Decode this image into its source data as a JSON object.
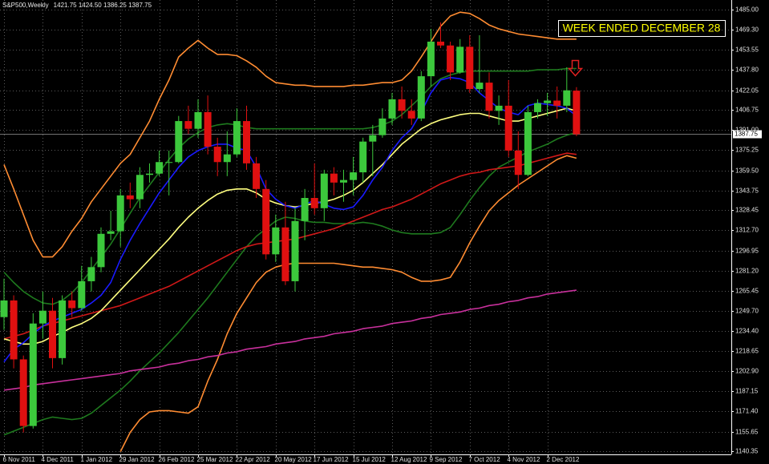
{
  "chart_data": {
    "type": "candlestick",
    "title": "S&P500,Weekly",
    "quote": "1421.75 1424.50 1386.25 1387.75",
    "annotation": "WEEK ENDED DECEMBER 28",
    "categories": [
      "6 Nov 2011",
      null,
      null,
      null,
      "4 Dec 2011",
      null,
      null,
      null,
      "1 Jan 2012",
      null,
      null,
      null,
      "29 Jan 2012",
      null,
      null,
      null,
      "26 Feb 2012",
      null,
      null,
      null,
      "25 Mar 2012",
      null,
      null,
      null,
      "22 Apr 2012",
      null,
      null,
      null,
      "20 May 2012",
      null,
      null,
      null,
      "17 Jun 2012",
      null,
      null,
      null,
      "15 Jul 2012",
      null,
      null,
      null,
      "12 Aug 2012",
      null,
      null,
      null,
      "9 Sep 2012",
      null,
      null,
      null,
      "7 Oct 2012",
      null,
      null,
      null,
      "4 Nov 2012",
      null,
      null,
      null,
      "2 Dec 2012",
      null,
      null,
      null
    ],
    "open": [
      1245,
      1258,
      1212,
      1160,
      1240,
      1250,
      1213,
      1258,
      1252,
      1273,
      1284,
      1310,
      1312,
      1340,
      1337,
      1356,
      1357,
      1366,
      1366,
      1398,
      1392,
      1405,
      1378,
      1366,
      1372,
      1398,
      1365,
      1345,
      1294,
      1315,
      1273,
      1320,
      1338,
      1330,
      1357,
      1350,
      1352,
      1358,
      1382,
      1387,
      1400,
      1415,
      1406,
      1400,
      1433,
      1460,
      1457,
      1436,
      1456,
      1423,
      1428,
      1406,
      1410,
      1375,
      1356,
      1405,
      1412,
      1414,
      1410,
      1421.75
    ],
    "high": [
      1275,
      1262,
      1215,
      1248,
      1265,
      1260,
      1262,
      1265,
      1285,
      1292,
      1315,
      1328,
      1345,
      1350,
      1362,
      1365,
      1375,
      1375,
      1402,
      1410,
      1415,
      1418,
      1385,
      1390,
      1408,
      1410,
      1370,
      1352,
      1325,
      1335,
      1330,
      1345,
      1365,
      1360,
      1362,
      1360,
      1370,
      1385,
      1395,
      1408,
      1420,
      1425,
      1415,
      1437,
      1470,
      1475,
      1460,
      1462,
      1465,
      1465,
      1436,
      1418,
      1430,
      1390,
      1410,
      1415,
      1420,
      1425,
      1440,
      1424.5
    ],
    "low": [
      1235,
      1205,
      1155,
      1158,
      1228,
      1205,
      1208,
      1245,
      1250,
      1265,
      1280,
      1305,
      1300,
      1330,
      1330,
      1350,
      1355,
      1340,
      1365,
      1388,
      1385,
      1372,
      1355,
      1355,
      1370,
      1360,
      1338,
      1290,
      1288,
      1270,
      1265,
      1305,
      1325,
      1320,
      1340,
      1335,
      1340,
      1350,
      1355,
      1385,
      1395,
      1400,
      1395,
      1398,
      1425,
      1455,
      1430,
      1435,
      1420,
      1420,
      1400,
      1395,
      1370,
      1345,
      1355,
      1400,
      1402,
      1400,
      1405,
      1386.25
    ],
    "close": [
      1258,
      1212,
      1160,
      1240,
      1250,
      1213,
      1258,
      1252,
      1273,
      1284,
      1310,
      1312,
      1340,
      1337,
      1356,
      1357,
      1366,
      1366,
      1398,
      1392,
      1405,
      1378,
      1366,
      1372,
      1398,
      1365,
      1345,
      1294,
      1315,
      1273,
      1320,
      1338,
      1330,
      1357,
      1350,
      1352,
      1358,
      1382,
      1387,
      1400,
      1415,
      1406,
      1400,
      1433,
      1460,
      1457,
      1436,
      1456,
      1423,
      1428,
      1406,
      1410,
      1375,
      1356,
      1405,
      1412,
      1414,
      1410,
      1422,
      1387.75
    ],
    "up_color": "#3cc83c",
    "down_color": "#e01010",
    "series": [
      {
        "color": "#ff8c32",
        "values": [
          1364,
          1345,
          1325,
          1305,
          1292,
          1292,
          1300,
          1312,
          1322,
          1335,
          1345,
          1355,
          1365,
          1372,
          1385,
          1398,
          1415,
          1430,
          1448,
          1455,
          1461,
          1455,
          1450,
          1450,
          1449,
          1445,
          1440,
          1433,
          1428,
          1427,
          1426,
          1426,
          1425,
          1425,
          1425,
          1425,
          1426,
          1426,
          1427,
          1428,
          1428,
          1430,
          1437,
          1448,
          1460,
          1472,
          1480,
          1483,
          1482,
          1478,
          1473,
          1470,
          1468,
          1466,
          1465,
          1464,
          1463,
          1462,
          1462,
          1462
        ]
      },
      {
        "color": "#ff8c32",
        "values": [
          null,
          null,
          null,
          null,
          null,
          null,
          null,
          null,
          null,
          null,
          null,
          null,
          1140,
          1155,
          1165,
          1171,
          1172,
          1172,
          1171,
          1170,
          1175,
          1195,
          1212,
          1232,
          1248,
          1260,
          1272,
          1280,
          1284,
          1286,
          1287,
          1287,
          1287,
          1287,
          1287,
          1286,
          1285,
          1284,
          1284,
          1283,
          1282,
          1280,
          1276,
          1273,
          1273,
          1274,
          1276,
          1288,
          1303,
          1316,
          1328,
          1336,
          1342,
          1348,
          1353,
          1358,
          1363,
          1368,
          1371,
          1369
        ]
      },
      {
        "color": "#1e7a1e",
        "values": [
          1280,
          1272,
          1265,
          1260,
          1256,
          1255,
          1258,
          1264,
          1272,
          1282,
          1292,
          1302,
          1314,
          1326,
          1338,
          1348,
          1358,
          1368,
          1377,
          1384,
          1389,
          1393,
          1395,
          1396,
          1395,
          1393,
          1392,
          1392,
          1392,
          1392,
          1392,
          1392,
          1392,
          1392,
          1392,
          1392,
          1392,
          1392,
          1393,
          1395,
          1398,
          1403,
          1410,
          1417,
          1425,
          1431,
          1434,
          1436,
          1437,
          1437,
          1437,
          1437,
          1437,
          1437,
          1437,
          1438,
          1438,
          1438,
          1439,
          1439
        ]
      },
      {
        "color": "#1e7a1e",
        "values": [
          1153,
          1156,
          1159,
          1162,
          1165,
          1167,
          1166,
          1165,
          1166,
          1170,
          1176,
          1182,
          1188,
          1195,
          1203,
          1210,
          1217,
          1225,
          1233,
          1242,
          1251,
          1260,
          1270,
          1280,
          1290,
          1300,
          1308,
          1314,
          1320,
          1323,
          1322,
          1320,
          1319,
          1319,
          1318,
          1318,
          1318,
          1319,
          1318,
          1316,
          1313,
          1311,
          1310,
          1310,
          1310,
          1311,
          1315,
          1325,
          1336,
          1346,
          1355,
          1362,
          1366,
          1370,
          1374,
          1377,
          1380,
          1384,
          1387,
          1389
        ]
      },
      {
        "color": "#c8309c",
        "values": [
          1188,
          1189,
          1190,
          1192,
          1193,
          1194,
          1195,
          1196,
          1197,
          1198,
          1199,
          1200,
          1201,
          1203,
          1204,
          1205,
          1206,
          1208,
          1209,
          1211,
          1212,
          1214,
          1215,
          1217,
          1218,
          1220,
          1221,
          1222,
          1224,
          1225,
          1226,
          1228,
          1229,
          1230,
          1232,
          1233,
          1234,
          1236,
          1237,
          1238,
          1240,
          1241,
          1242,
          1244,
          1245,
          1247,
          1248,
          1249,
          1251,
          1252,
          1254,
          1255,
          1257,
          1258,
          1260,
          1261,
          1263,
          1264,
          1265,
          1266
        ]
      },
      {
        "color": "#d01818",
        "values": [
          1228,
          1230,
          1232,
          1235,
          1238,
          1240,
          1242,
          1244,
          1246,
          1248,
          1250,
          1252,
          1254,
          1257,
          1260,
          1263,
          1266,
          1269,
          1273,
          1277,
          1281,
          1285,
          1289,
          1293,
          1297,
          1300,
          1302,
          1303,
          1304,
          1305,
          1306,
          1308,
          1310,
          1312,
          1314,
          1317,
          1320,
          1323,
          1326,
          1329,
          1331,
          1334,
          1337,
          1341,
          1345,
          1349,
          1352,
          1355,
          1357,
          1358,
          1360,
          1361,
          1362,
          1363,
          1365,
          1367,
          1369,
          1371,
          1373,
          1372
        ]
      },
      {
        "color": "#ffff80",
        "values": [
          1228,
          1226,
          1224,
          1224,
          1226,
          1230,
          1233,
          1237,
          1240,
          1244,
          1250,
          1258,
          1266,
          1274,
          1282,
          1290,
          1298,
          1306,
          1315,
          1323,
          1330,
          1336,
          1341,
          1344,
          1345,
          1345,
          1342,
          1337,
          1334,
          1332,
          1331,
          1332,
          1334,
          1335,
          1337,
          1340,
          1344,
          1350,
          1357,
          1364,
          1372,
          1380,
          1386,
          1392,
          1396,
          1399,
          1401,
          1403,
          1404,
          1404,
          1402,
          1400,
          1398,
          1398,
          1400,
          1402,
          1404,
          1406,
          1408,
          1406
        ]
      },
      {
        "color": "#1a1aff",
        "values": [
          1210,
          1220,
          1225,
          1232,
          1238,
          1242,
          1245,
          1248,
          1251,
          1256,
          1262,
          1272,
          1290,
          1305,
          1318,
          1330,
          1342,
          1352,
          1362,
          1370,
          1375,
          1378,
          1380,
          1380,
          1377,
          1375,
          1362,
          1345,
          1337,
          1332,
          1330,
          1333,
          1336,
          1333,
          1330,
          1329,
          1331,
          1340,
          1352,
          1362,
          1375,
          1385,
          1392,
          1405,
          1420,
          1430,
          1432,
          1431,
          1428,
          1420,
          1414,
          1408,
          1405,
          1403,
          1410,
          1412,
          1411,
          1410,
          1408,
          1402
        ]
      }
    ],
    "ylim": [
      1137.85,
      1492.5
    ],
    "yticks": [
      {
        "value": 1485,
        "label": "1485.00"
      },
      {
        "value": 1469.3,
        "label": "1469.30"
      },
      {
        "value": 1453.55,
        "label": "1453.55"
      },
      {
        "value": 1437.8,
        "label": "1437.80"
      },
      {
        "value": 1422.05,
        "label": "1422.05"
      },
      {
        "value": 1406.75,
        "label": "1406.75"
      },
      {
        "value": 1391,
        "label": "1391.00"
      },
      {
        "value": 1375.25,
        "label": "1375.25"
      },
      {
        "value": 1359.5,
        "label": "1359.50"
      },
      {
        "value": 1343.75,
        "label": "1343.75"
      },
      {
        "value": 1328.45,
        "label": "1328.45"
      },
      {
        "value": 1312.7,
        "label": "1312.70"
      },
      {
        "value": 1296.95,
        "label": "1296.95"
      },
      {
        "value": 1281.2,
        "label": "1281.20"
      },
      {
        "value": 1265.45,
        "label": "1265.45"
      },
      {
        "value": 1249.7,
        "label": "1249.70"
      },
      {
        "value": 1234.4,
        "label": "1234.40"
      },
      {
        "value": 1218.65,
        "label": "1218.65"
      },
      {
        "value": 1202.9,
        "label": "1202.90"
      },
      {
        "value": 1187.15,
        "label": "1187.15"
      },
      {
        "value": 1171.4,
        "label": "1171.40"
      },
      {
        "value": 1155.65,
        "label": "1155.65"
      },
      {
        "value": 1140.35,
        "label": "1140.35"
      }
    ],
    "price_marker": {
      "value": 1387.75,
      "label": "1387.75"
    },
    "grid": true
  }
}
